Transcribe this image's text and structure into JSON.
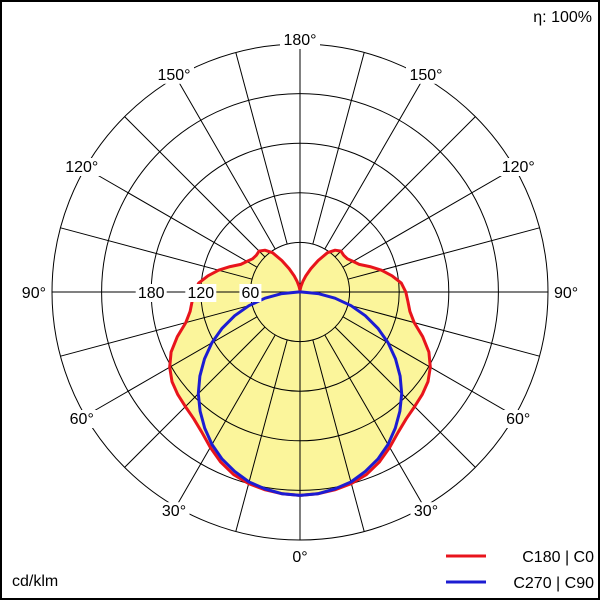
{
  "chart_data": {
    "type": "polar",
    "efficiency_label": "η: 100%",
    "unit_label": "cd/klm",
    "angle_labels": [
      "180°",
      "150°",
      "120°",
      "90°",
      "60°",
      "30°",
      "0°"
    ],
    "radial_tick_labels": [
      "180",
      "120",
      "60"
    ],
    "rlim": [
      0,
      300
    ],
    "grid": true,
    "legend_position": "bottom-right",
    "colors": {
      "fill": "#fbf59b",
      "c0": "#e8141c",
      "c90": "#1c1cd2",
      "grid": "#000000"
    },
    "series": [
      {
        "name": "C180 | C0",
        "color": "#e8141c",
        "filled": true,
        "angles": [
          0,
          5,
          10,
          15,
          20,
          25,
          30,
          35,
          40,
          45,
          50,
          55,
          60,
          65,
          70,
          75,
          80,
          85,
          90,
          95,
          100,
          105,
          110,
          115,
          120,
          125,
          130,
          135,
          140,
          145,
          150,
          155,
          160,
          165,
          170,
          175,
          180
        ],
        "values": [
          246,
          245,
          243,
          240,
          235,
          227,
          217,
          207,
          200,
          196,
          193,
          189,
          182,
          172,
          158,
          143,
          135,
          131,
          128,
          123,
          113,
          102,
          90,
          79,
          74,
          70,
          69,
          70,
          66,
          58,
          44,
          31,
          21,
          13,
          7,
          3,
          2
        ]
      },
      {
        "name": "C270 | C90",
        "color": "#1c1cd2",
        "filled": false,
        "angles": [
          0,
          5,
          10,
          15,
          20,
          25,
          30,
          35,
          40,
          45,
          50,
          55,
          60,
          65,
          70,
          75,
          80,
          85,
          90,
          95,
          100,
          105,
          110,
          115,
          120,
          125,
          130,
          135,
          140,
          145,
          150,
          155,
          160,
          165,
          170,
          175,
          180
        ],
        "values": [
          246,
          245,
          242,
          238,
          231,
          223,
          213,
          201,
          188,
          174,
          158,
          141,
          123,
          104,
          84,
          64,
          43,
          22,
          2,
          0,
          0,
          0,
          0,
          0,
          0,
          0,
          0,
          0,
          0,
          0,
          0,
          0,
          0,
          0,
          0,
          0,
          0
        ]
      }
    ]
  }
}
